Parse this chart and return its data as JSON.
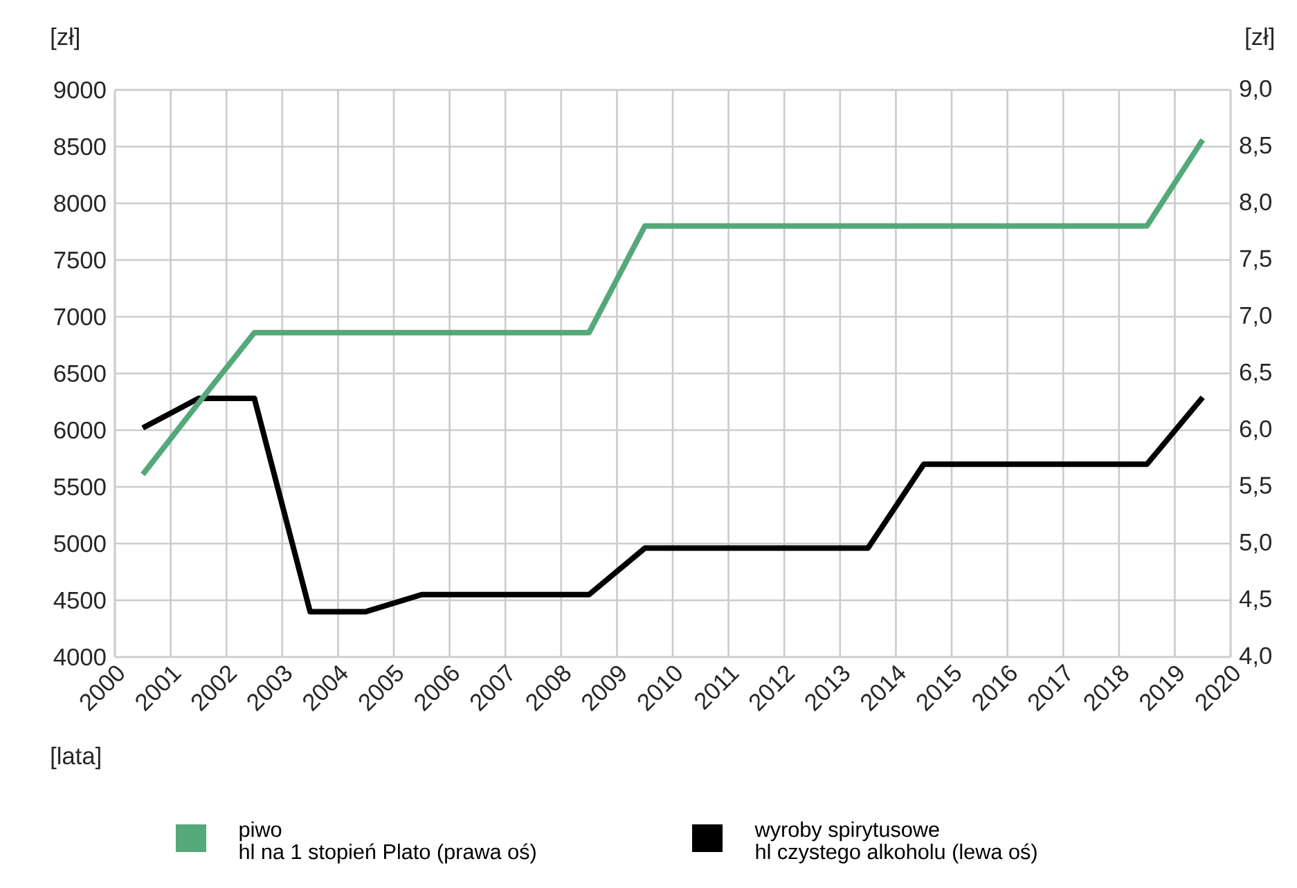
{
  "chart_data": {
    "type": "line",
    "xlabel": "[lata]",
    "ylabel": "[zł]",
    "y2label": "[zł]",
    "x": [
      2000.5,
      2001.5,
      2002.5,
      2003.5,
      2004.5,
      2005.5,
      2006.5,
      2007.5,
      2008.5,
      2009.5,
      2010.5,
      2011.5,
      2012.5,
      2013.5,
      2014.5,
      2015.5,
      2016.5,
      2017.5,
      2018.5,
      2019.5
    ],
    "series": [
      {
        "name": "piwo",
        "color": "#55a87a",
        "axis": "y2",
        "values": [
          5.61,
          6.24,
          6.86,
          6.86,
          6.86,
          6.86,
          6.86,
          6.86,
          6.86,
          7.8,
          7.8,
          7.8,
          7.8,
          7.8,
          7.8,
          7.8,
          7.8,
          7.8,
          7.8,
          8.56
        ]
      },
      {
        "name": "wyroby spirytusowe",
        "color": "#000000",
        "axis": "y",
        "values": [
          6020,
          6280,
          6280,
          4400,
          4400,
          4550,
          4550,
          4550,
          4550,
          4960,
          4960,
          4960,
          4960,
          4960,
          5700,
          5700,
          5700,
          5700,
          5700,
          6290
        ]
      }
    ],
    "annotations": [
      "hl na 1 stopień Plato (prawa oś)",
      "hl czystego alkoholu (lewa oś)"
    ],
    "xlim": [
      2000,
      2020
    ],
    "xticks": [
      2000,
      2001,
      2002,
      2003,
      2004,
      2005,
      2006,
      2007,
      2008,
      2009,
      2010,
      2011,
      2012,
      2013,
      2014,
      2015,
      2016,
      2017,
      2018,
      2019,
      2020
    ],
    "ylim": [
      4000,
      9000
    ],
    "yticks": [
      4000,
      4500,
      5000,
      5500,
      6000,
      6500,
      7000,
      7500,
      8000,
      8500,
      9000
    ],
    "y2lim": [
      4,
      9
    ],
    "y2ticks": [
      {
        "value": 4,
        "label": "4,0"
      },
      {
        "value": 4.5,
        "label": "4,5"
      },
      {
        "value": 5,
        "label": "5,0"
      },
      {
        "value": 5.5,
        "label": "5,5"
      },
      {
        "value": 6,
        "label": "6,0"
      },
      {
        "value": 6.5,
        "label": "6,5"
      },
      {
        "value": 7,
        "label": "7,0"
      },
      {
        "value": 7.5,
        "label": "7,5"
      },
      {
        "value": 8,
        "label": "8,0"
      },
      {
        "value": 8.5,
        "label": "8,5"
      },
      {
        "value": 9,
        "label": "9,0"
      }
    ],
    "grid": true,
    "legend": "bottom",
    "marker": "none",
    "line_style": "solid"
  }
}
